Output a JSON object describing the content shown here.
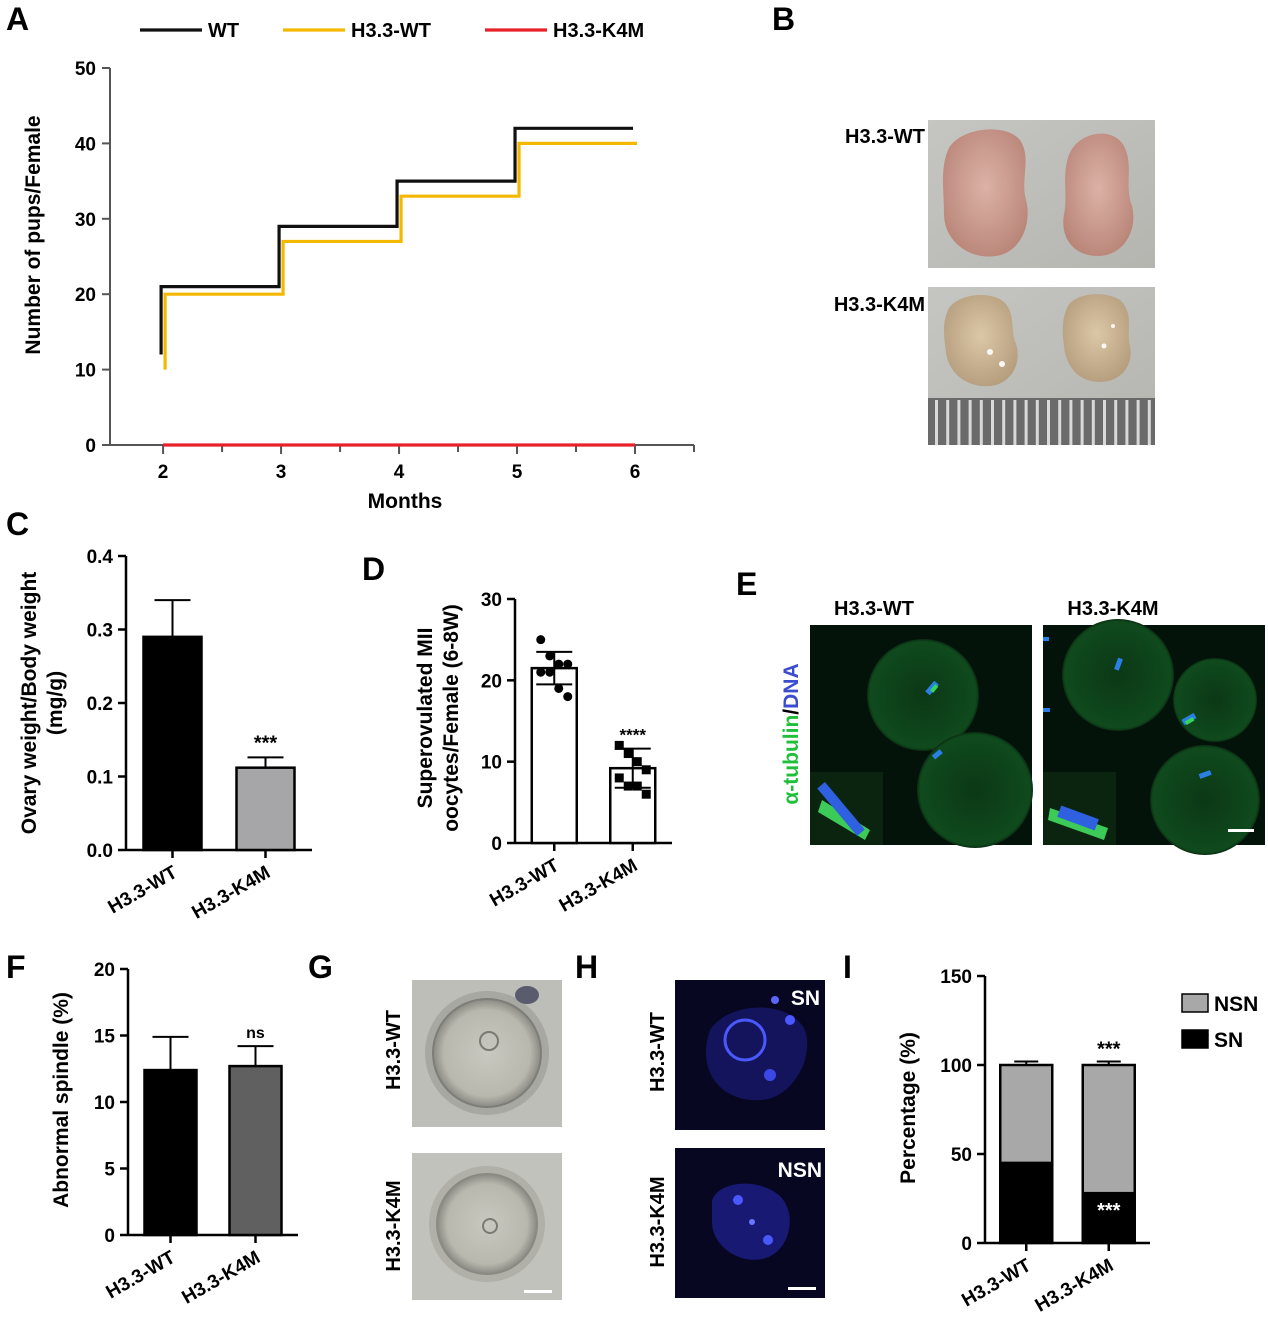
{
  "panels": {
    "A": {
      "letter": "A"
    },
    "B": {
      "letter": "B"
    },
    "C": {
      "letter": "C"
    },
    "D": {
      "letter": "D"
    },
    "E": {
      "letter": "E"
    },
    "F": {
      "letter": "F"
    },
    "G": {
      "letter": "G"
    },
    "H": {
      "letter": "H"
    },
    "I": {
      "letter": "I"
    }
  },
  "images": {
    "B": {
      "row1": "H3.3-WT",
      "row2": "H3.3-K4M"
    },
    "E": {
      "col1": "H3.3-WT",
      "col2": "H3.3-K4M",
      "side_green": "α-tubulin",
      "side_sep": "/",
      "side_blue": "DNA"
    },
    "G": {
      "row1": "H3.3-WT",
      "row2": "H3.3-K4M"
    },
    "H": {
      "row1": "H3.3-WT",
      "row2": "H3.3-K4M",
      "tag1": "SN",
      "tag2": "NSN"
    }
  },
  "colors": {
    "wt_black": "#111111",
    "h33wt_yellow": "#f5b800",
    "h33k4m_red": "#e8202a",
    "bar_gray": "#a6a6a9",
    "bar_dark_gray": "#606060",
    "nsn_gray": "#a8a8a8"
  },
  "chart_data": [
    {
      "id": "A",
      "type": "line",
      "xlabel": "Months",
      "ylabel": "Number of pups/Female",
      "xlim": [
        1.55,
        6.5
      ],
      "ylim": [
        0,
        50
      ],
      "xticks": [
        2,
        3,
        4,
        5,
        6
      ],
      "yticks": [
        0,
        10,
        20,
        30,
        40,
        50
      ],
      "legend": "top",
      "series": [
        {
          "name": "WT",
          "color": "#111111",
          "x": [
            2,
            2,
            3,
            3,
            4,
            4,
            5,
            5,
            6
          ],
          "y": [
            12,
            21,
            21,
            29,
            29,
            35,
            35,
            42,
            42
          ]
        },
        {
          "name": "H3.3-WT",
          "color": "#f5b800",
          "x": [
            2,
            2,
            3,
            3,
            4,
            4,
            5,
            5,
            6
          ],
          "y": [
            10,
            20,
            20,
            27,
            27,
            33,
            33,
            40,
            40
          ]
        },
        {
          "name": "H3.3-K4M",
          "color": "#e8202a",
          "x": [
            2,
            6
          ],
          "y": [
            0,
            0
          ]
        }
      ]
    },
    {
      "id": "C",
      "type": "bar",
      "ylabel_lines": [
        "Ovary weight/Body weight",
        "(mg/g)"
      ],
      "categories": [
        "H3.3-WT",
        "H3.3-K4M"
      ],
      "values": [
        0.29,
        0.112
      ],
      "errors": [
        0.05,
        0.014
      ],
      "colors": [
        "#000000",
        "#a6a6a9"
      ],
      "significance": [
        "",
        "***"
      ],
      "ylim": [
        0,
        0.4
      ],
      "yticks": [
        0.0,
        0.1,
        0.2,
        0.3,
        0.4
      ],
      "ytick_labels": [
        "0.0",
        "0.1",
        "0.2",
        "0.3",
        "0.4"
      ]
    },
    {
      "id": "D",
      "type": "bar",
      "ylabel_lines": [
        "Superovulated MII",
        "oocytes/Female (6-8W)"
      ],
      "categories": [
        "H3.3-WT",
        "H3.3-K4M"
      ],
      "values": [
        21.5,
        9.2
      ],
      "errors": [
        2.0,
        2.4
      ],
      "points": [
        [
          25,
          23,
          22,
          22,
          21,
          21,
          19,
          18
        ],
        [
          12,
          11,
          10,
          9,
          8,
          7,
          7,
          6
        ]
      ],
      "significance": [
        "",
        "****"
      ],
      "ylim": [
        0,
        30
      ],
      "yticks": [
        0,
        10,
        20,
        30
      ],
      "ytick_labels": [
        "0",
        "10",
        "20",
        "30"
      ]
    },
    {
      "id": "F",
      "type": "bar",
      "ylabel": "Abnormal spindle (%)",
      "categories": [
        "H3.3-WT",
        "H3.3-K4M"
      ],
      "values": [
        12.4,
        12.7
      ],
      "errors": [
        2.5,
        1.5
      ],
      "colors": [
        "#000000",
        "#606060"
      ],
      "significance": [
        "",
        "ns"
      ],
      "ylim": [
        0,
        20
      ],
      "yticks": [
        0,
        5,
        10,
        15,
        20
      ],
      "ytick_labels": [
        "0",
        "5",
        "10",
        "15",
        "20"
      ]
    },
    {
      "id": "I",
      "type": "bar",
      "stacked": true,
      "ylabel": "Percentage (%)",
      "categories": [
        "H3.3-WT",
        "H3.3-K4M"
      ],
      "series": [
        {
          "name": "SN",
          "color": "#000000",
          "values": [
            45,
            28
          ],
          "errors": [
            2,
            2
          ]
        },
        {
          "name": "NSN",
          "color": "#a8a8a8",
          "values": [
            55,
            72
          ],
          "errors": [
            2,
            2
          ]
        }
      ],
      "significance": {
        "SN": [
          "",
          "***"
        ],
        "NSN": [
          "",
          "***"
        ]
      },
      "legend": "right",
      "legend_order": [
        "NSN",
        "SN"
      ],
      "ylim": [
        0,
        150
      ],
      "yticks": [
        0,
        50,
        100,
        150
      ],
      "ytick_labels": [
        "0",
        "50",
        "100",
        "150"
      ]
    }
  ]
}
